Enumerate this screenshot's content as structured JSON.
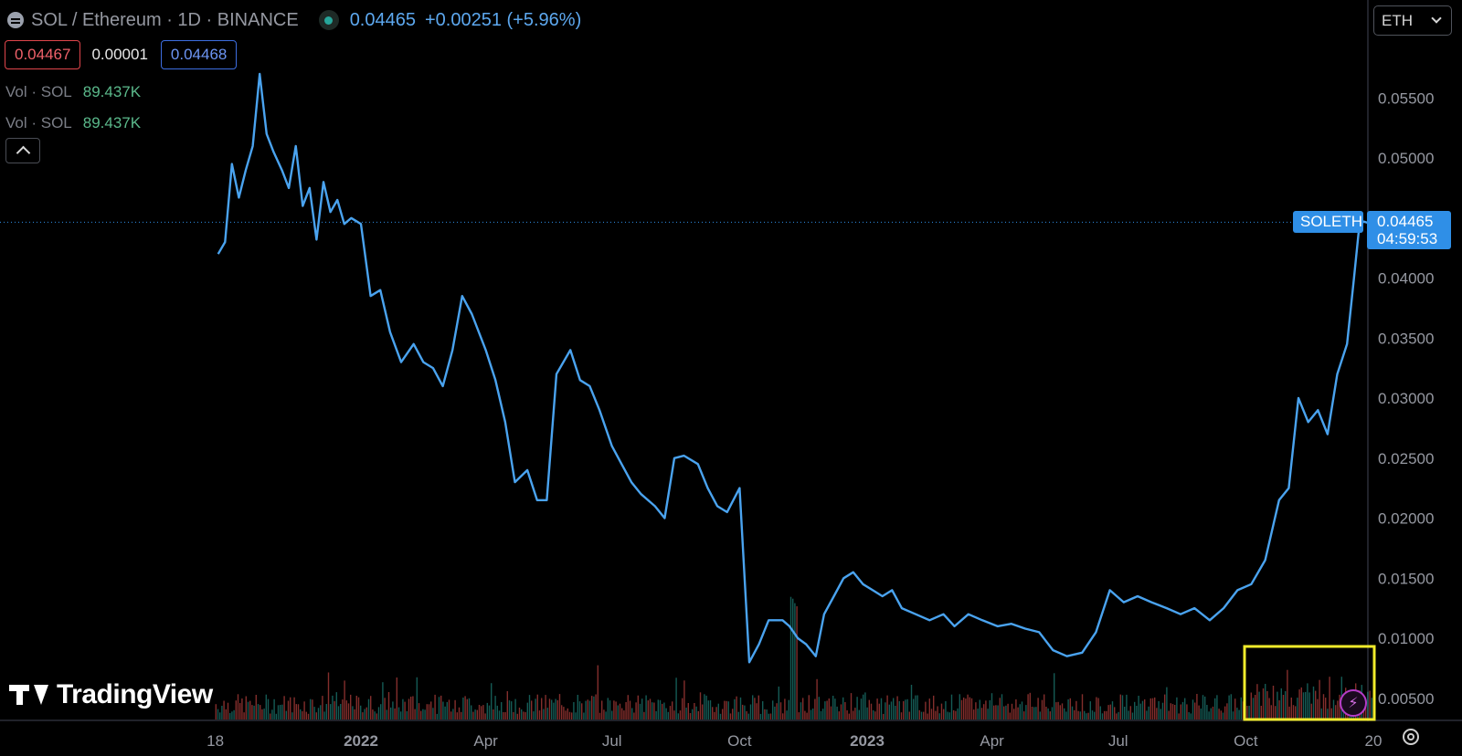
{
  "header": {
    "title": "SOL / Ethereum · 1D · BINANCE",
    "last_price": "0.04465",
    "change": "+0.00251 (+5.96%)",
    "sell_price": "0.04467",
    "spread": "0.00001",
    "buy_price": "0.04468"
  },
  "indicators": [
    {
      "label": "Vol · SOL",
      "value": "89.437K"
    },
    {
      "label": "Vol · SOL",
      "value": "89.437K"
    }
  ],
  "currency_select": {
    "value": "ETH"
  },
  "price_tag": {
    "symbol": "SOLETH",
    "price": "0.04465",
    "countdown": "04:59:53"
  },
  "logo_text": "TradingView",
  "colors": {
    "line": "#4aa3ef",
    "up": "#26a69a",
    "down": "#ef5350",
    "highlight": "#f1eb2b",
    "tag": "#2f8fe7"
  },
  "chart_data": {
    "type": "line",
    "ylim": [
      0.0035,
      0.058
    ],
    "y_ticks": [
      "0.05500",
      "0.05000",
      "0.04500",
      "0.04000",
      "0.03500",
      "0.03000",
      "0.02500",
      "0.02000",
      "0.01500",
      "0.01000",
      "0.00500"
    ],
    "x_ticks": [
      {
        "label": "18",
        "x": "2021-09-18"
      },
      {
        "label": "2022",
        "x": "2022-01-01"
      },
      {
        "label": "Apr",
        "x": "2022-04-01"
      },
      {
        "label": "Jul",
        "x": "2022-07-01"
      },
      {
        "label": "Oct",
        "x": "2022-10-01"
      },
      {
        "label": "2023",
        "x": "2023-01-01"
      },
      {
        "label": "Apr",
        "x": "2023-04-01"
      },
      {
        "label": "Jul",
        "x": "2023-07-01"
      },
      {
        "label": "Oct",
        "x": "2023-10-01"
      },
      {
        "label": "20",
        "x": "2024-01-01"
      }
    ],
    "x": [
      "2021-09-20",
      "2021-09-25",
      "2021-09-30",
      "2021-10-05",
      "2021-10-10",
      "2021-10-15",
      "2021-10-20",
      "2021-10-25",
      "2021-10-30",
      "2021-11-05",
      "2021-11-10",
      "2021-11-15",
      "2021-11-20",
      "2021-11-25",
      "2021-11-30",
      "2021-12-05",
      "2021-12-10",
      "2021-12-15",
      "2021-12-20",
      "2021-12-25",
      "2022-01-01",
      "2022-01-08",
      "2022-01-15",
      "2022-01-22",
      "2022-01-30",
      "2022-02-08",
      "2022-02-15",
      "2022-02-22",
      "2022-03-01",
      "2022-03-08",
      "2022-03-15",
      "2022-03-22",
      "2022-04-01",
      "2022-04-08",
      "2022-04-15",
      "2022-04-22",
      "2022-05-01",
      "2022-05-08",
      "2022-05-15",
      "2022-05-22",
      "2022-06-01",
      "2022-06-08",
      "2022-06-15",
      "2022-06-22",
      "2022-07-01",
      "2022-07-08",
      "2022-07-15",
      "2022-07-22",
      "2022-08-01",
      "2022-08-08",
      "2022-08-15",
      "2022-08-22",
      "2022-09-01",
      "2022-09-08",
      "2022-09-15",
      "2022-09-22",
      "2022-10-01",
      "2022-10-08",
      "2022-10-15",
      "2022-10-22",
      "2022-11-01",
      "2022-11-06",
      "2022-11-09",
      "2022-11-12",
      "2022-11-18",
      "2022-11-25",
      "2022-12-01",
      "2022-12-08",
      "2022-12-15",
      "2022-12-22",
      "2022-12-29",
      "2023-01-05",
      "2023-01-12",
      "2023-01-19",
      "2023-01-26",
      "2023-02-05",
      "2023-02-15",
      "2023-02-25",
      "2023-03-05",
      "2023-03-15",
      "2023-03-25",
      "2023-04-05",
      "2023-04-15",
      "2023-04-25",
      "2023-05-05",
      "2023-05-15",
      "2023-05-25",
      "2023-06-05",
      "2023-06-15",
      "2023-06-25",
      "2023-07-05",
      "2023-07-15",
      "2023-07-25",
      "2023-08-05",
      "2023-08-15",
      "2023-08-25",
      "2023-09-05",
      "2023-09-15",
      "2023-09-25",
      "2023-10-05",
      "2023-10-15",
      "2023-10-25",
      "2023-11-01",
      "2023-11-08",
      "2023-11-15",
      "2023-11-22",
      "2023-11-29",
      "2023-12-06",
      "2023-12-13",
      "2023-12-18",
      "2023-12-22",
      "2023-12-25",
      "2023-12-28",
      "2023-12-31"
    ],
    "values": [
      0.042,
      0.043,
      0.0495,
      0.0467,
      0.049,
      0.051,
      0.057,
      0.052,
      0.0505,
      0.049,
      0.0475,
      0.051,
      0.046,
      0.0475,
      0.0432,
      0.048,
      0.0455,
      0.0465,
      0.0445,
      0.045,
      0.0445,
      0.0385,
      0.039,
      0.0355,
      0.033,
      0.0345,
      0.033,
      0.0325,
      0.031,
      0.034,
      0.0385,
      0.037,
      0.034,
      0.0315,
      0.028,
      0.023,
      0.024,
      0.0215,
      0.0215,
      0.032,
      0.034,
      0.0315,
      0.031,
      0.029,
      0.026,
      0.0245,
      0.023,
      0.022,
      0.021,
      0.02,
      0.025,
      0.0252,
      0.0245,
      0.0225,
      0.021,
      0.0205,
      0.0225,
      0.008,
      0.0095,
      0.0115,
      0.0115,
      0.011,
      0.0105,
      0.01,
      0.0095,
      0.0085,
      0.012,
      0.0135,
      0.015,
      0.0155,
      0.0145,
      0.014,
      0.0135,
      0.014,
      0.0125,
      0.012,
      0.0115,
      0.012,
      0.011,
      0.012,
      0.0115,
      0.011,
      0.0112,
      0.0108,
      0.0105,
      0.009,
      0.0085,
      0.0088,
      0.0105,
      0.014,
      0.013,
      0.0135,
      0.013,
      0.0125,
      0.012,
      0.0125,
      0.0115,
      0.0125,
      0.014,
      0.0145,
      0.0165,
      0.0215,
      0.0225,
      0.03,
      0.028,
      0.029,
      0.027,
      0.032,
      0.0345,
      0.04,
      0.0445,
      0.0447,
      0.0446,
      0.0446
    ]
  }
}
